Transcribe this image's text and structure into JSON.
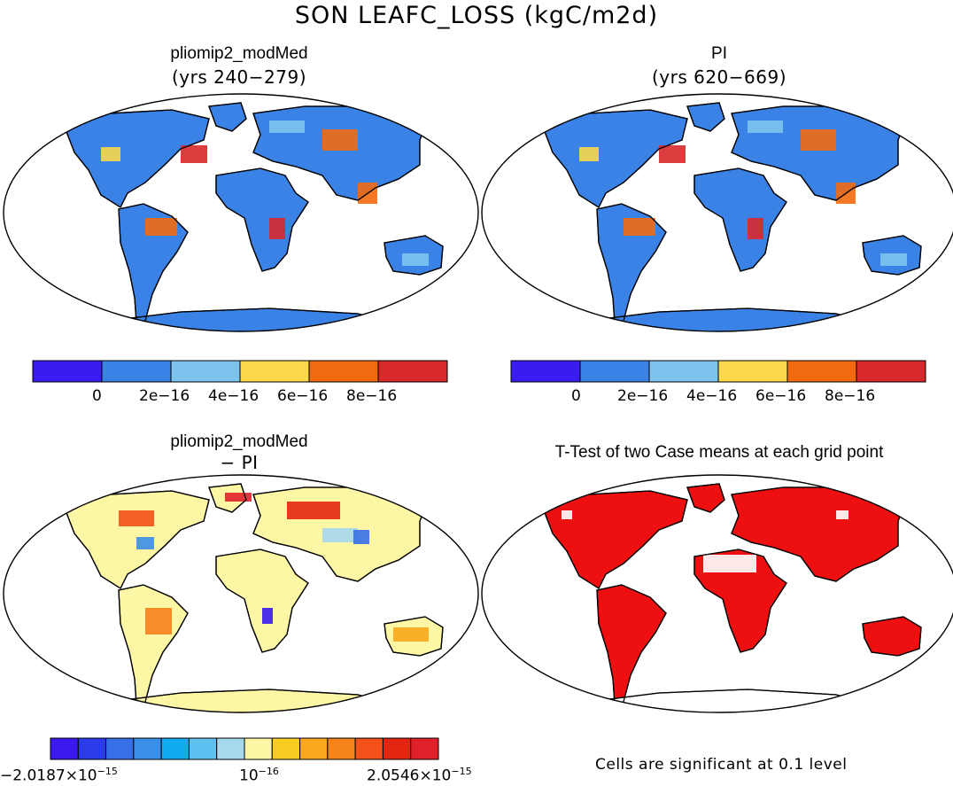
{
  "figure": {
    "title": "SON LEAFC_LOSS (kgC/m2d)",
    "panels": {
      "top_left": {
        "title": "pliomip2_modMed",
        "subtitle": "(yrs 240−279)"
      },
      "top_right": {
        "title": "PI",
        "subtitle": "(yrs 620−669)"
      },
      "bottom_left": {
        "title": "pliomip2_modMed",
        "subtitle": "− PI"
      },
      "bottom_right": {
        "title": "T-Test of two Case means at each grid point"
      }
    },
    "abs_colorbar": {
      "colors": [
        "#3a1cf0",
        "#3a82e6",
        "#7cc4ee",
        "#fbd84a",
        "#f26a10",
        "#d8282a"
      ],
      "labels": [
        "0",
        "2e−16",
        "4e−16",
        "6e−16",
        "8e−16"
      ]
    },
    "diff_colorbar": {
      "colors": [
        "#3a18ee",
        "#2a3cea",
        "#3670e8",
        "#3a8ee8",
        "#12aaf0",
        "#5ec0ee",
        "#a6d8ee",
        "#fdf6a4",
        "#f8cc20",
        "#f8a81a",
        "#f6821c",
        "#f4501a",
        "#e22612",
        "#e0202a"
      ],
      "min_mantissa": "−2.0187×10",
      "min_exp": "−15",
      "mid_mantissa": "10",
      "mid_exp": "−16",
      "max_mantissa": "2.0546×10",
      "max_exp": "−15"
    },
    "significance_note": "Cells are significant at 0.1 level",
    "map_colors": {
      "ocean": "#ffffff",
      "abs_base": "#3a82e6",
      "diff_base": "#fdf6a4",
      "ttest_fill": "#ee1010"
    }
  }
}
